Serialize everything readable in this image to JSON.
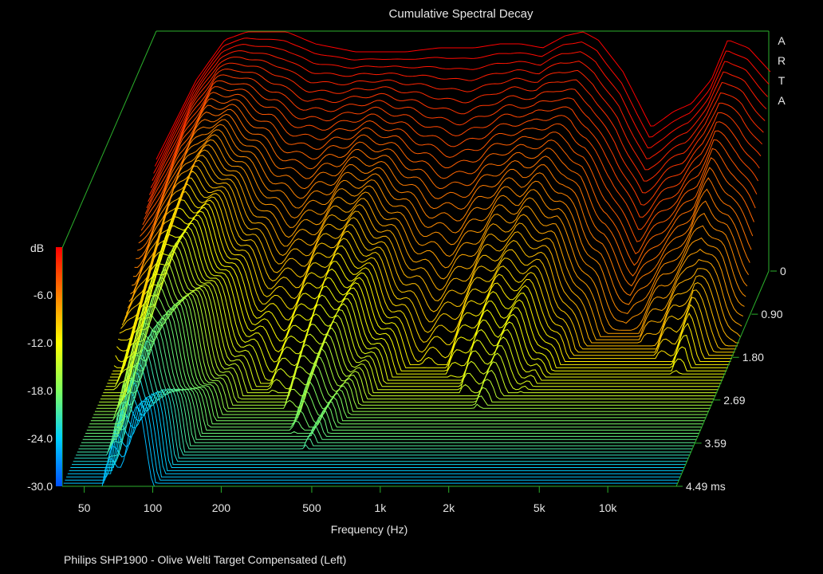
{
  "chart_data": {
    "type": "waterfall",
    "title": "Cumulative Spectral Decay",
    "xlabel": "Frequency (Hz)",
    "zlabel": "dB",
    "brand": "ARTA",
    "footer": "Philips SHP1900 - Olive Welti Target Compensated (Left)",
    "x_scale": "log",
    "xlim": [
      40,
      20000
    ],
    "x_ticks": [
      50,
      100,
      200,
      500,
      1000,
      2000,
      5000,
      10000
    ],
    "x_tick_labels": [
      "50",
      "100",
      "200",
      "500",
      "1k",
      "2k",
      "5k",
      "10k"
    ],
    "zlim": [
      -30,
      0
    ],
    "z_ticks": [
      -30,
      -24,
      -18,
      -12,
      -6
    ],
    "z_tick_labels": [
      "-30.0",
      "-24.0",
      "-18.0",
      "-12.0",
      "-6.0"
    ],
    "time_ticks": [
      0,
      0.9,
      1.8,
      2.69,
      3.59,
      4.49
    ],
    "time_tick_labels": [
      "0",
      "0.90",
      "1.80",
      "2.69",
      "3.59",
      "4.49 ms"
    ],
    "time_unit": "ms",
    "colormap": [
      "#0050ff",
      "#00d0ff",
      "#80ff60",
      "#ffff00",
      "#ff8000",
      "#ff0000"
    ],
    "slice_count": 70,
    "initial_response": {
      "freq": [
        40,
        60,
        80,
        100,
        120,
        150,
        200,
        300,
        500,
        700,
        1000,
        1300,
        1600,
        2000,
        2500,
        3000,
        3500,
        4500,
        6000,
        7500,
        9000,
        11000,
        13000,
        16000,
        20000
      ],
      "db": [
        -16,
        -6,
        -1,
        0,
        0,
        0,
        -1.5,
        -2.5,
        -2.5,
        -2,
        -2,
        -1.5,
        -1.5,
        -2,
        -0.5,
        0,
        -1,
        -5,
        -12,
        -10,
        -9,
        -6,
        -1,
        -2,
        -5
      ]
    }
  }
}
